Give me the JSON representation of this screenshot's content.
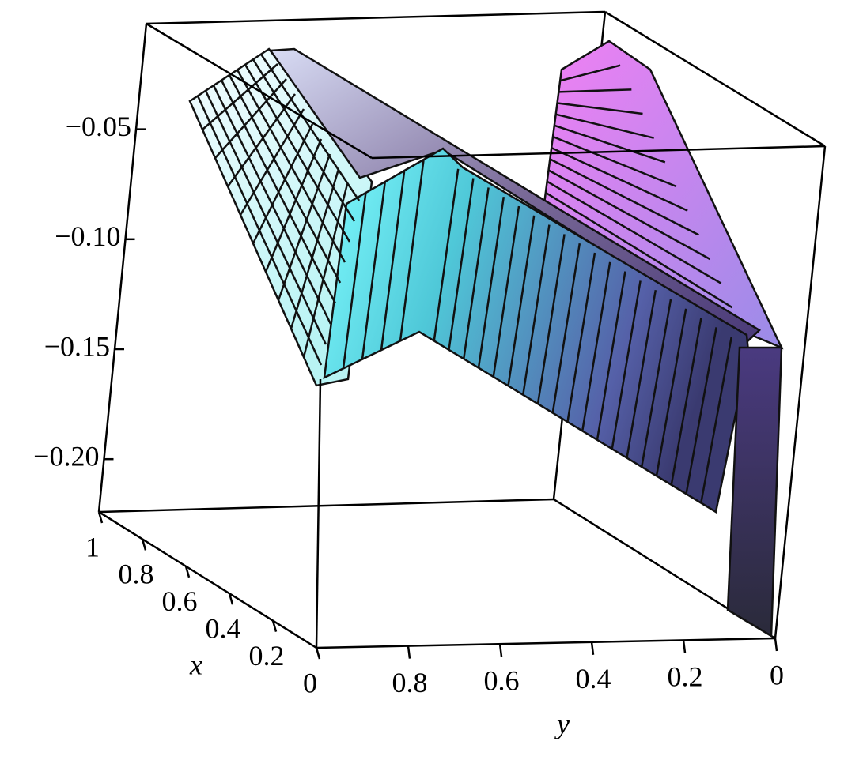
{
  "chart_data": {
    "type": "surface3d",
    "x_label": "x",
    "y_label": "y",
    "xlim": [
      0,
      1
    ],
    "xticks": [
      0,
      0.2,
      0.4,
      0.6,
      0.8,
      1
    ],
    "ylim": [
      0,
      1
    ],
    "yticks": [
      0,
      0.2,
      0.4,
      0.6,
      0.8
    ],
    "zlim": [
      -0.224,
      -0.002
    ],
    "zticks": [
      {
        "value": -0.2,
        "label": "−0.20"
      },
      {
        "value": -0.15,
        "label": "−0.15"
      },
      {
        "value": -0.1,
        "label": "−0.10"
      },
      {
        "value": -0.05,
        "label": "−0.05"
      }
    ]
  }
}
